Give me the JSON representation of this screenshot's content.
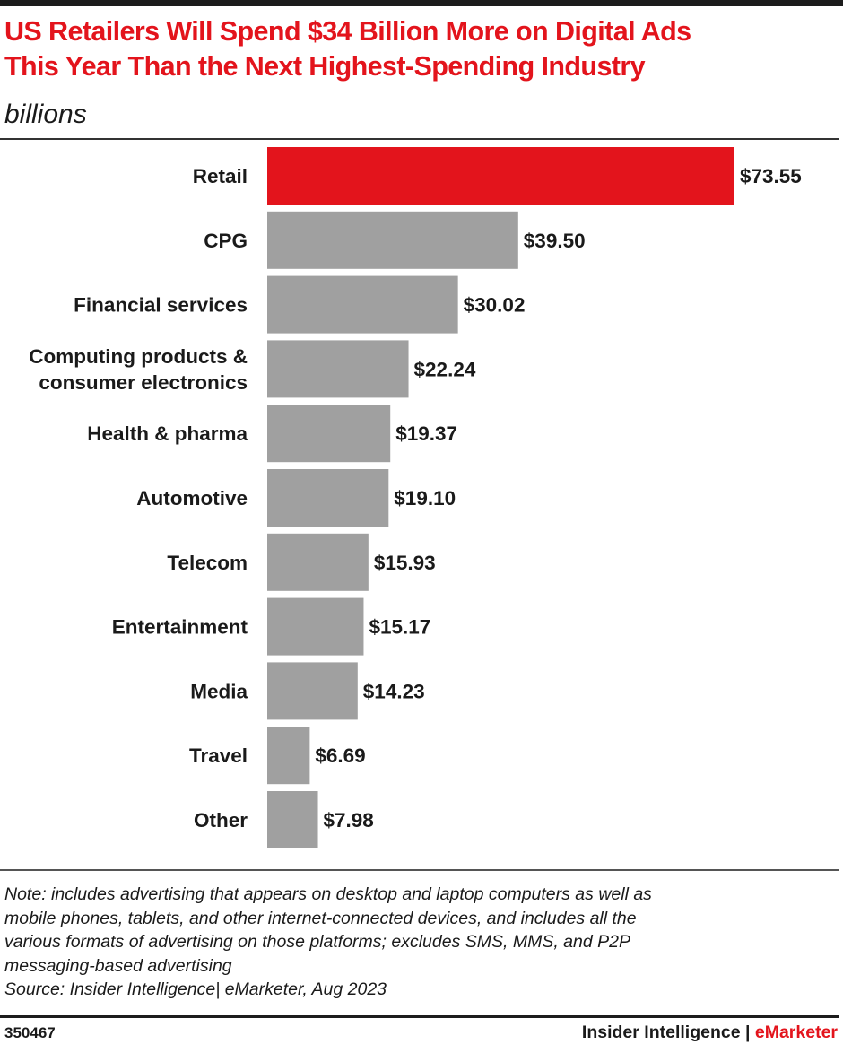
{
  "header": {
    "title_line1": "US Retailers Will Spend $34 Billion More on Digital Ads",
    "title_line2": "This Year Than the Next Highest-Spending Industry",
    "subtitle": "billions"
  },
  "chart_data": {
    "type": "bar",
    "orientation": "horizontal",
    "categories": [
      [
        "Retail"
      ],
      [
        "CPG"
      ],
      [
        "Financial services"
      ],
      [
        "Computing products &",
        "consumer electronics"
      ],
      [
        "Health & pharma"
      ],
      [
        "Automotive"
      ],
      [
        "Telecom"
      ],
      [
        "Entertainment"
      ],
      [
        "Media"
      ],
      [
        "Travel"
      ],
      [
        "Other"
      ]
    ],
    "values": [
      73.55,
      39.5,
      30.02,
      22.24,
      19.37,
      19.1,
      15.93,
      15.17,
      14.23,
      6.69,
      7.98
    ],
    "value_labels": [
      "$73.55",
      "$39.50",
      "$30.02",
      "$22.24",
      "$19.37",
      "$19.10",
      "$15.93",
      "$15.17",
      "$14.23",
      "$6.69",
      "$7.98"
    ],
    "highlight_index": 0,
    "colors": {
      "highlight": "#e3141c",
      "default": "#a0a0a0"
    },
    "grid": false
  },
  "footer": {
    "note_lines": [
      "Note: includes advertising that appears on desktop and laptop computers as well as",
      "mobile phones, tablets, and other internet-connected devices, and includes all the",
      "various formats of advertising on those platforms; excludes SMS, MMS, and P2P",
      "messaging-based advertising"
    ],
    "source": "Source: Insider Intelligence| eMarketer, Aug 2023",
    "chart_id": "350467",
    "brand_main": "Insider Intelligence | ",
    "brand_accent": "eMarketer"
  }
}
